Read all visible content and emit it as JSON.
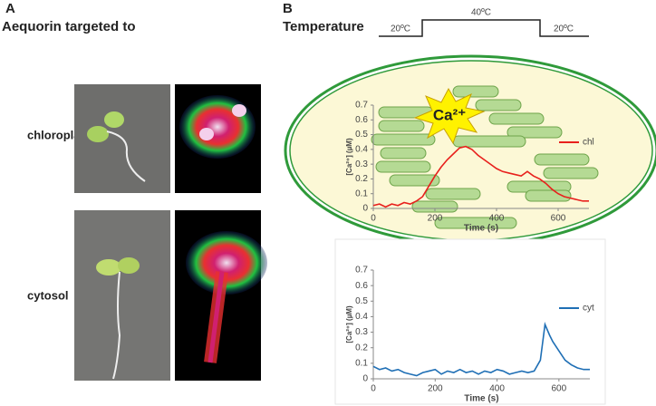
{
  "panel_a": {
    "letter": "A",
    "heading": "Aequorin targeted to",
    "rows": [
      "chloroplast",
      "cytosol"
    ]
  },
  "panel_b": {
    "letter": "B",
    "heading": "Temperature",
    "temps": [
      "20ºC",
      "40ºC",
      "20ºC"
    ],
    "badge": "Ca²⁺"
  },
  "chart_data": [
    {
      "type": "line",
      "x_label": "Time (s)",
      "y_label": "[Ca²⁺] (µM)",
      "x": [
        0,
        20,
        40,
        60,
        80,
        100,
        120,
        140,
        160,
        180,
        200,
        220,
        240,
        260,
        280,
        300,
        320,
        340,
        360,
        380,
        400,
        420,
        440,
        460,
        480,
        500,
        520,
        540,
        560,
        580,
        600,
        620,
        640,
        660,
        680,
        700
      ],
      "series": [
        {
          "name": "chl",
          "color": "#e8201c",
          "values": [
            0.02,
            0.03,
            0.01,
            0.03,
            0.02,
            0.04,
            0.03,
            0.05,
            0.08,
            0.15,
            0.22,
            0.28,
            0.33,
            0.37,
            0.41,
            0.42,
            0.4,
            0.36,
            0.33,
            0.3,
            0.27,
            0.25,
            0.24,
            0.23,
            0.22,
            0.25,
            0.22,
            0.2,
            0.17,
            0.13,
            0.1,
            0.08,
            0.07,
            0.06,
            0.05,
            0.05
          ]
        }
      ],
      "xlim": [
        0,
        700
      ],
      "ylim": [
        0,
        0.7
      ],
      "xticks": [
        0,
        200,
        400,
        600
      ],
      "yticks": [
        0,
        0.1,
        0.2,
        0.3,
        0.4,
        0.5,
        0.6,
        0.7
      ]
    },
    {
      "type": "line",
      "x_label": "Time (s)",
      "y_label": "[Ca²⁺] (µM)",
      "x": [
        0,
        20,
        40,
        60,
        80,
        100,
        120,
        140,
        160,
        180,
        200,
        220,
        240,
        260,
        280,
        300,
        320,
        340,
        360,
        380,
        400,
        420,
        440,
        460,
        480,
        500,
        520,
        540,
        555,
        570,
        580,
        600,
        620,
        640,
        660,
        680,
        700
      ],
      "series": [
        {
          "name": "cyt",
          "color": "#1f6fb5",
          "values": [
            0.08,
            0.06,
            0.07,
            0.05,
            0.06,
            0.04,
            0.03,
            0.02,
            0.04,
            0.05,
            0.06,
            0.03,
            0.05,
            0.04,
            0.06,
            0.04,
            0.05,
            0.03,
            0.05,
            0.04,
            0.06,
            0.05,
            0.03,
            0.04,
            0.05,
            0.04,
            0.05,
            0.12,
            0.35,
            0.28,
            0.24,
            0.18,
            0.12,
            0.09,
            0.07,
            0.06,
            0.06
          ]
        }
      ],
      "xlim": [
        0,
        700
      ],
      "ylim": [
        0,
        0.7
      ],
      "xticks": [
        0,
        200,
        400,
        600
      ],
      "yticks": [
        0,
        0.1,
        0.2,
        0.3,
        0.4,
        0.5,
        0.6,
        0.7
      ]
    }
  ]
}
